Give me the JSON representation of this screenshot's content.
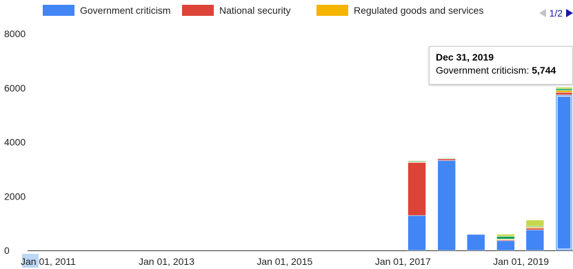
{
  "legend": {
    "items": [
      {
        "label": "Government criticism",
        "color": "#4285f4"
      },
      {
        "label": "National security",
        "color": "#db4437"
      },
      {
        "label": "Regulated goods and services",
        "color": "#f4b400"
      }
    ],
    "pager": "1/2"
  },
  "tooltip": {
    "date": "Dec 31, 2019",
    "series": "Government criticism:",
    "value": "5,744"
  },
  "chart_data": {
    "type": "bar",
    "stacked": true,
    "y_ticks": [
      "0",
      "2000",
      "4000",
      "6000",
      "8000"
    ],
    "ylim": [
      0,
      8000
    ],
    "x_ticks": [
      "Jan 01, 2011",
      "Jan 01, 2013",
      "Jan 01, 2015",
      "Jan 01, 2017",
      "Jan 01, 2019"
    ],
    "xlim": [
      "2010-12-15",
      "2020-02-20"
    ],
    "grid": false,
    "legend_position": "top",
    "categories": [
      "2017-06-30",
      "2017-12-31",
      "2018-06-30",
      "2018-12-31",
      "2019-06-30",
      "2019-12-31"
    ],
    "series": [
      {
        "name": "Government criticism",
        "color": "#4285f4",
        "values": [
          1290,
          3320,
          590,
          360,
          760,
          5744
        ]
      },
      {
        "name": "National security",
        "color": "#db4437",
        "values": [
          1960,
          60,
          20,
          30,
          60,
          90
        ]
      },
      {
        "name": "Regulated goods and services",
        "color": "#f4b400",
        "values": [
          20,
          10,
          10,
          30,
          40,
          70
        ]
      },
      {
        "color": "#0f9d58",
        "values": [
          30,
          20,
          10,
          100,
          30,
          60
        ]
      },
      {
        "color": "#c5d94a",
        "values": [
          20,
          20,
          10,
          80,
          230,
          60
        ]
      }
    ],
    "highlighted_category": "2019-12-31"
  }
}
